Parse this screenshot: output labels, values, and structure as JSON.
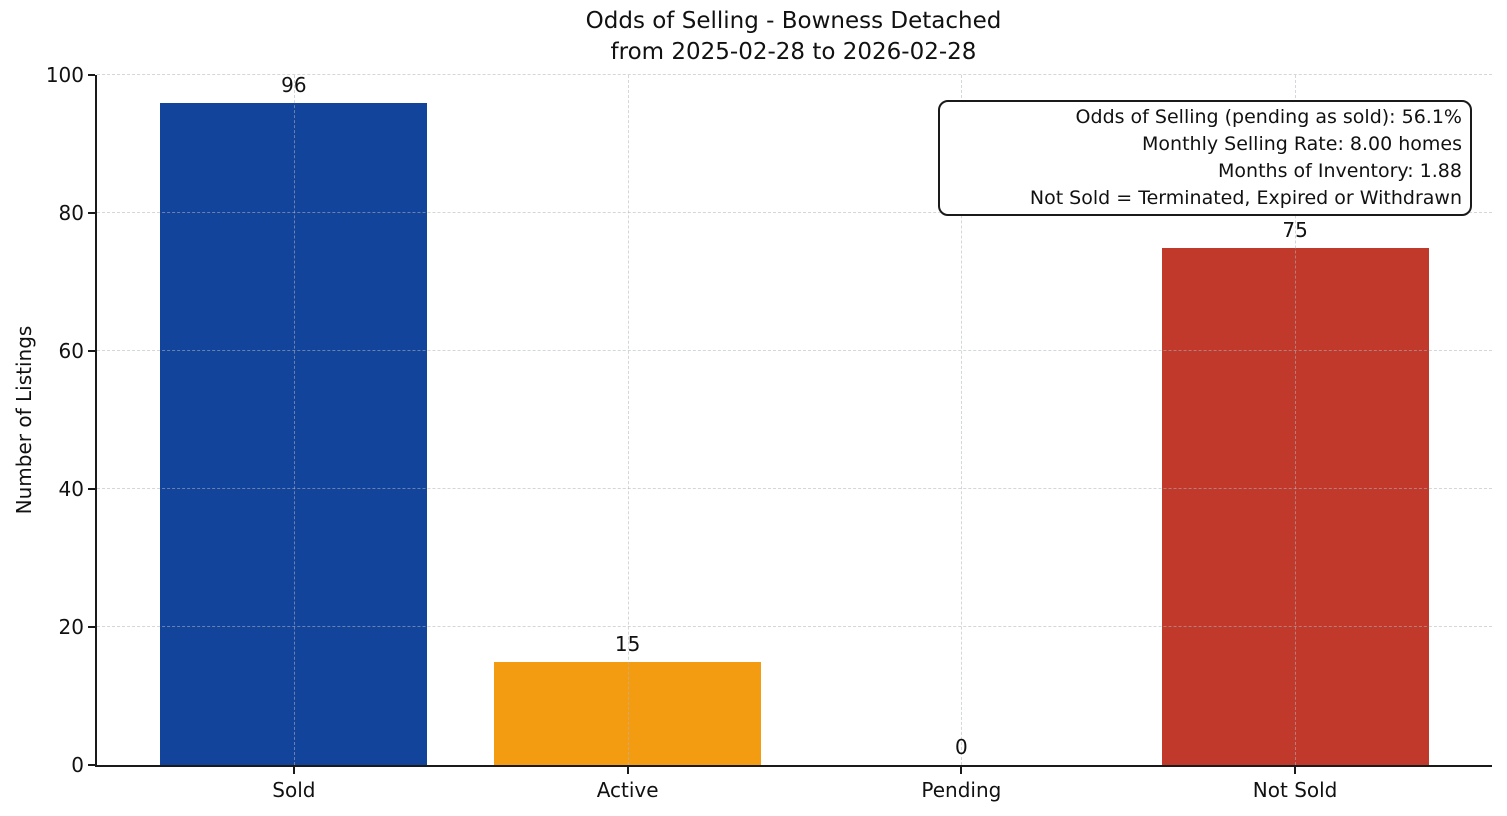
{
  "chart_data": {
    "type": "bar",
    "title": "Odds of Selling - Bowness Detached",
    "subtitle": "from 2025-02-28 to 2026-02-28",
    "xlabel": "",
    "ylabel": "Number of Listings",
    "categories": [
      "Sold",
      "Active",
      "Pending",
      "Not Sold"
    ],
    "values": [
      96,
      15,
      0,
      75
    ],
    "bar_colors": [
      "#12449c",
      "#f39c12",
      null,
      "#c0392b"
    ],
    "ylim": [
      0,
      100
    ],
    "yticks": [
      0,
      20,
      40,
      60,
      80,
      100
    ],
    "xlim": [
      -0.59,
      3.59
    ],
    "bar_width": 0.8,
    "grid": "dashed",
    "legend": "none",
    "annotation": {
      "position": "top-right",
      "lines": [
        "Odds of Selling (pending as sold): 56.1%",
        "Monthly Selling Rate: 8.00 homes",
        "Months of Inventory: 1.88",
        "Not Sold = Terminated, Expired or Withdrawn"
      ]
    }
  },
  "colors": {
    "background": "#ffffff",
    "spine": "#1a1a1a",
    "text": "#111111",
    "grid": "#afb6bc"
  }
}
